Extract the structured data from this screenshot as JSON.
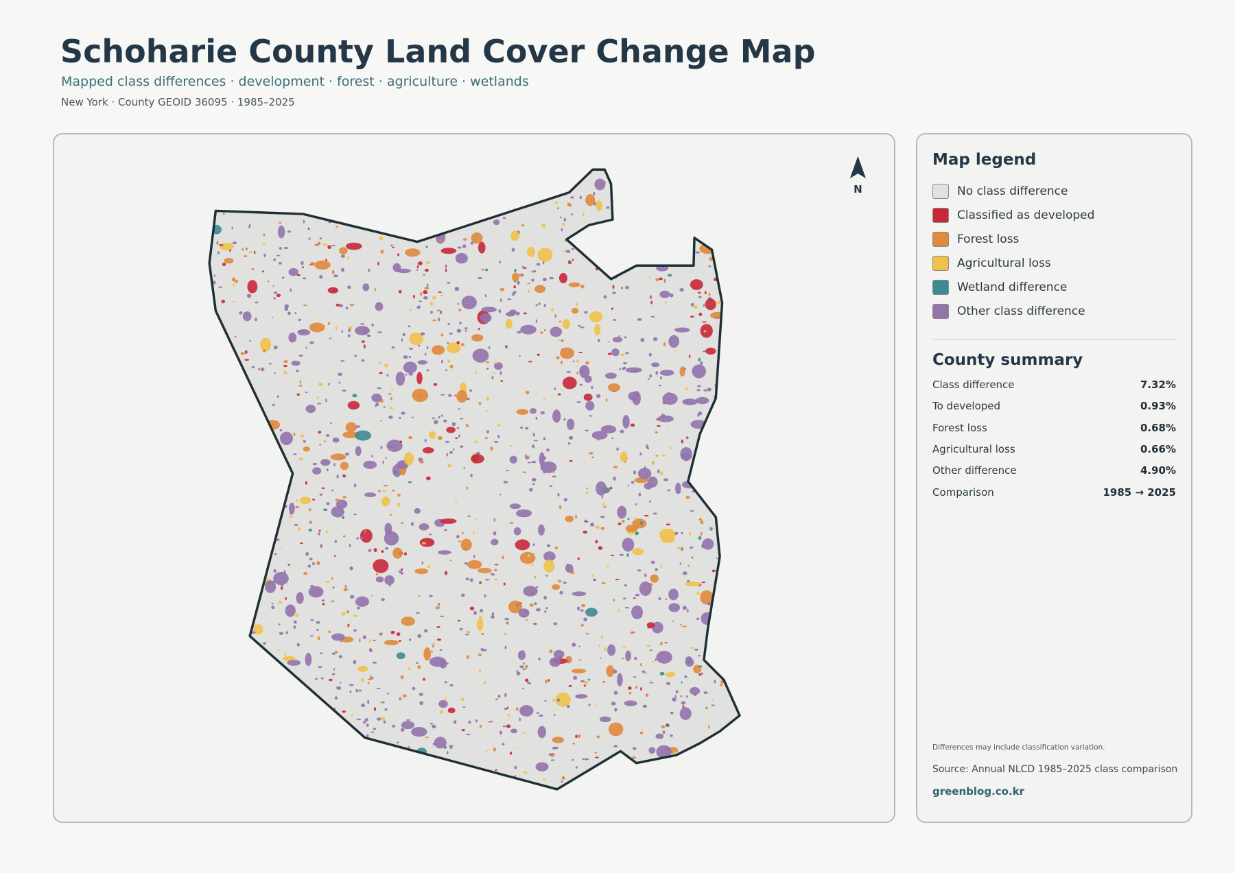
{
  "header": {
    "title": "Schoharie County Land Cover Change Map",
    "subtitle": "Mapped class differences · development · forest · agriculture · wetlands",
    "meta": "New York · County GEOID 36095 · 1985–2025"
  },
  "map": {
    "north_label": "N"
  },
  "legend": {
    "title": "Map legend",
    "items": [
      {
        "label": "No class difference",
        "color": "#e1e2df"
      },
      {
        "label": "Classified as developed",
        "color": "#c8283a"
      },
      {
        "label": "Forest loss",
        "color": "#e08a3c"
      },
      {
        "label": "Agricultural loss",
        "color": "#efc24a"
      },
      {
        "label": "Wetland difference",
        "color": "#3e8a92"
      },
      {
        "label": "Other class difference",
        "color": "#9273ac"
      }
    ]
  },
  "summary": {
    "title": "County summary",
    "rows": [
      {
        "label": "Class difference",
        "value": "7.32%"
      },
      {
        "label": "To developed",
        "value": "0.93%"
      },
      {
        "label": "Forest loss",
        "value": "0.68%"
      },
      {
        "label": "Agricultural loss",
        "value": "0.66%"
      },
      {
        "label": "Other difference",
        "value": "4.90%"
      },
      {
        "label": "Comparison",
        "value": "1985 → 2025"
      }
    ]
  },
  "footer": {
    "note": "Differences may include classification variation.",
    "source": "Source: Annual NLCD 1985–2025 class comparison",
    "site": "greenblog.co.kr"
  }
}
